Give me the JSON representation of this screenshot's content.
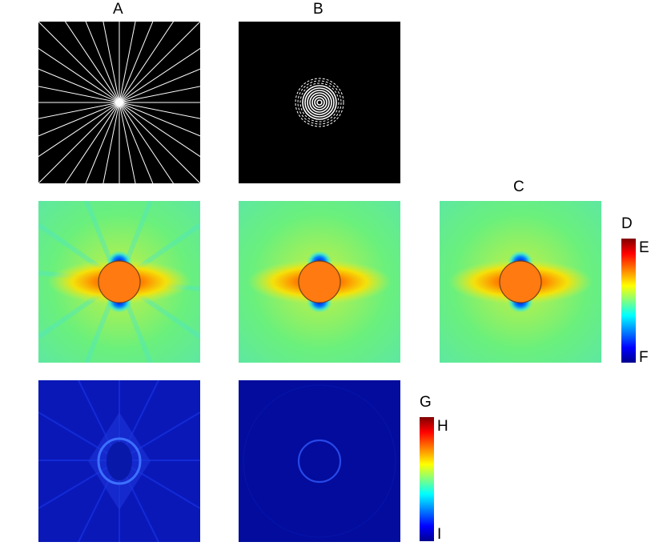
{
  "columns": {
    "a": "A",
    "b": "B",
    "c": "C"
  },
  "colorbar_top": {
    "title": "D",
    "max_label": "E",
    "min_label": "F"
  },
  "colorbar_bottom": {
    "title": "G",
    "max_label": "H",
    "min_label": "I"
  },
  "colors": {
    "background": "#000000",
    "line": "#ffffff",
    "field_base": "#6af07c",
    "field_hot": "#ff3a00",
    "field_core": "#ff7a10",
    "field_cold": "#0010d0",
    "error_base": "#040ea8",
    "error_line": "#1c3cf0"
  }
}
